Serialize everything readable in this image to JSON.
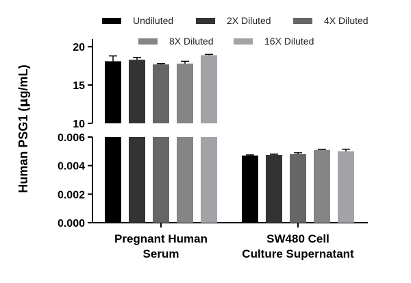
{
  "chart_data": {
    "type": "bar",
    "ylabel": "Human PSG1 (µg/mL)",
    "ylabel_parts": {
      "prefix": "Human PSG1 (",
      "mu": "µ",
      "suffix": "g/mL)"
    },
    "categories": [
      {
        "name": "Pregnant Human Serum",
        "lines": [
          "Pregnant Human",
          "Serum"
        ]
      },
      {
        "name": "SW480 Cell Culture Supernatant",
        "lines": [
          "SW480 Cell",
          "Culture Supernatant"
        ]
      }
    ],
    "series": [
      {
        "name": "Undiluted",
        "color": "#000000",
        "values": [
          18.1,
          0.0047
        ],
        "errors": [
          0.7,
          5e-05
        ]
      },
      {
        "name": "2X Diluted",
        "color": "#333333",
        "values": [
          18.3,
          0.00475
        ],
        "errors": [
          0.3,
          5e-05
        ]
      },
      {
        "name": "4X Diluted",
        "color": "#666666",
        "values": [
          17.7,
          0.0048
        ],
        "errors": [
          0.1,
          0.0001
        ]
      },
      {
        "name": "8X Diluted",
        "color": "#858585",
        "values": [
          17.8,
          0.0051
        ],
        "errors": [
          0.3,
          4e-05
        ]
      },
      {
        "name": "16X Diluted",
        "color": "#a3a3a7",
        "values": [
          18.9,
          0.005
        ],
        "errors": [
          0.1,
          0.00015
        ]
      }
    ],
    "y_axis_segments": [
      {
        "range": [
          0,
          0.006
        ],
        "ticks": [
          0,
          0.002,
          0.004,
          0.006
        ],
        "tick_labels": [
          "0.000",
          "0.002",
          "0.004",
          "0.006"
        ]
      },
      {
        "range": [
          10,
          21
        ],
        "ticks": [
          10,
          15,
          20
        ],
        "tick_labels": [
          "10",
          "15",
          "20"
        ]
      }
    ],
    "y_axis_break": true,
    "grid": false,
    "legend_position": "top"
  }
}
